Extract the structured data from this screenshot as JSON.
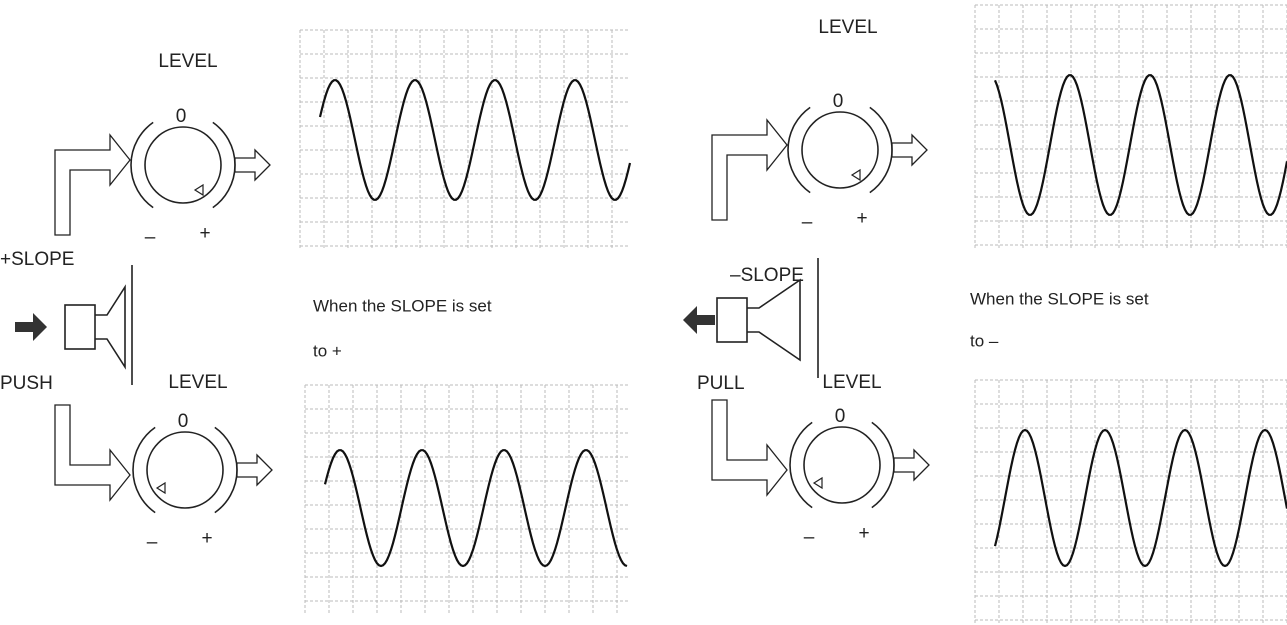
{
  "panels": [
    {
      "slope": "+SLOPE",
      "action": "PUSH",
      "caption": [
        "When the SLOPE is set",
        "to +"
      ],
      "knobs": [
        {
          "label": "LEVEL",
          "zero": "0",
          "minus": "–",
          "plus": "+"
        },
        {
          "label": "LEVEL",
          "zero": "0",
          "minus": "–",
          "plus": "+"
        }
      ]
    },
    {
      "slope": "–SLOPE",
      "action": "PULL",
      "caption": [
        "When the SLOPE is set",
        "to –"
      ],
      "knobs": [
        {
          "label": "LEVEL",
          "zero": "0",
          "minus": "–",
          "plus": "+"
        },
        {
          "label": "LEVEL",
          "zero": "0",
          "minus": "–",
          "plus": "+"
        }
      ]
    }
  ]
}
